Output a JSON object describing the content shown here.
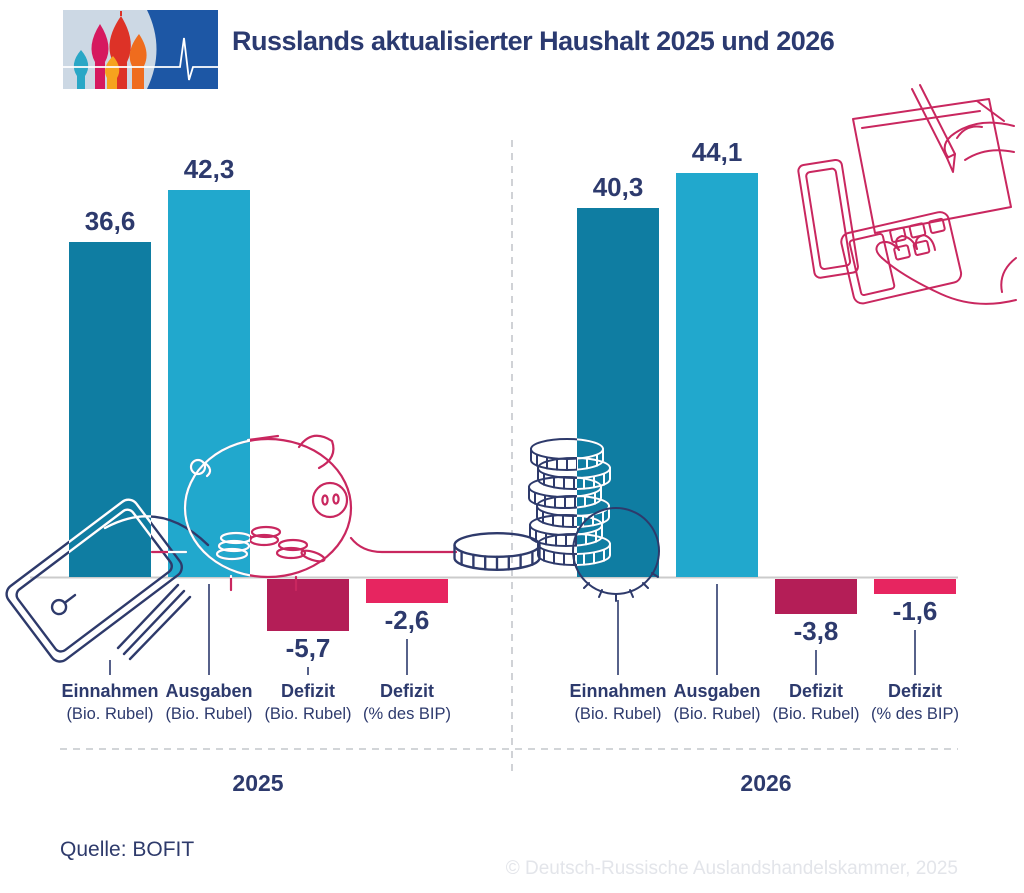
{
  "header": {
    "title": "Russlands aktualisierter Haushalt 2025 und 2026",
    "logo_name": "kremlin-domes-pulse-logo"
  },
  "chart_data": {
    "type": "bar",
    "title": "Russlands aktualisierter Haushalt 2025 und 2026",
    "grid": "off",
    "baseline": 0,
    "value_label_color": "#2d3a6d",
    "groups": [
      {
        "year": "2025",
        "bars": [
          {
            "label": "Einnahmen",
            "sublabel": "(Bio. Rubel)",
            "value": 36.6,
            "display": "36,6",
            "color": "#0f7da2"
          },
          {
            "label": "Ausgaben",
            "sublabel": "(Bio. Rubel)",
            "value": 42.3,
            "display": "42,3",
            "color": "#21a8cd"
          },
          {
            "label": "Defizit",
            "sublabel": "(Bio. Rubel)",
            "value": -5.7,
            "display": "-5,7",
            "color": "#b41e57"
          },
          {
            "label": "Defizit",
            "sublabel": "(% des BIP)",
            "value": -2.6,
            "display": "-2,6",
            "color": "#e72560"
          }
        ]
      },
      {
        "year": "2026",
        "bars": [
          {
            "label": "Einnahmen",
            "sublabel": "(Bio. Rubel)",
            "value": 40.3,
            "display": "40,3",
            "color": "#0f7da2"
          },
          {
            "label": "Ausgaben",
            "sublabel": "(Bio. Rubel)",
            "value": 44.1,
            "display": "44,1",
            "color": "#21a8cd"
          },
          {
            "label": "Defizit",
            "sublabel": "(Bio. Rubel)",
            "value": -3.8,
            "display": "-3,8",
            "color": "#b41e57"
          },
          {
            "label": "Defizit",
            "sublabel": "(% des BIP)",
            "value": -1.6,
            "display": "-1,6",
            "color": "#e72560"
          }
        ]
      }
    ],
    "decorations": [
      {
        "name": "wallet-illustration",
        "color": "#2e3a6b"
      },
      {
        "name": "piggy-bank-illustration",
        "color": "#c9275f"
      },
      {
        "name": "coin-stack-illustration",
        "color": "#2e3a6b"
      },
      {
        "name": "calculator-hands-illustration",
        "color": "#c9275f"
      }
    ]
  },
  "footer": {
    "source": "Quelle: BOFIT",
    "copyright": "© Deutsch-Russische Auslandshandelskammer, 2025"
  }
}
